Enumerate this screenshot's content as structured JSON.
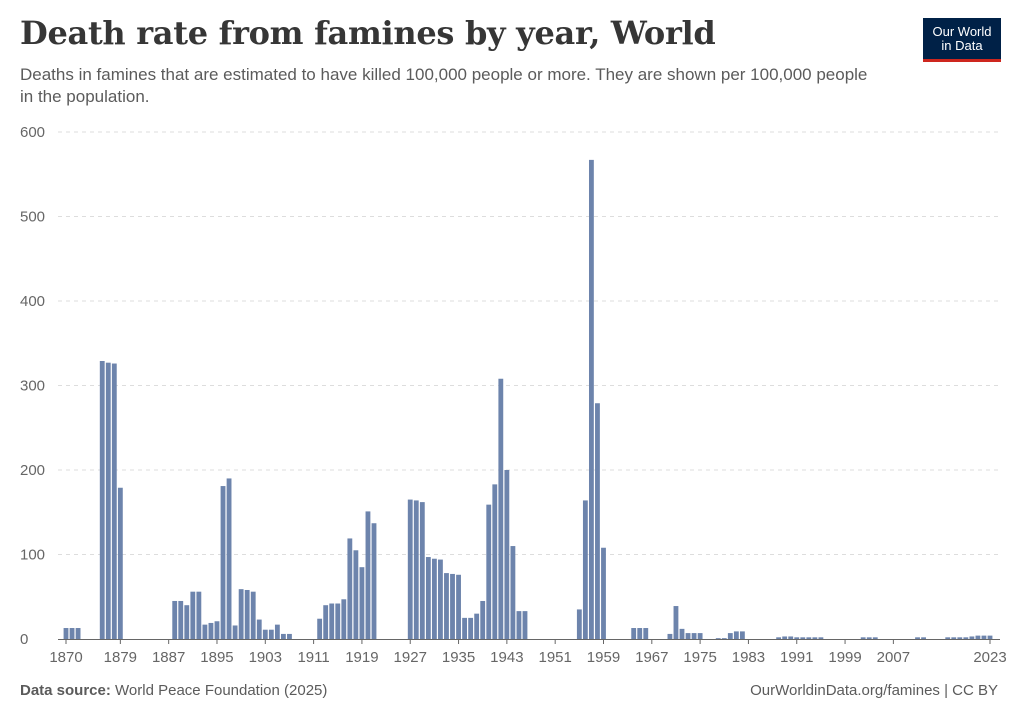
{
  "header": {
    "title": "Death rate from famines by year, World",
    "subtitle": "Deaths in famines that are estimated to have killed 100,000 people or more. They are shown per 100,000 people in the population."
  },
  "logo": {
    "line1": "Our World",
    "line2": "in Data"
  },
  "footer": {
    "source_label": "Data source:",
    "source_text": "World Peace Foundation (2025)",
    "link": "OurWorldinData.org/famines | CC BY"
  },
  "colors": {
    "bar": "#6d84ac",
    "grid": "#dddddd",
    "axis": "#666666"
  },
  "chart_data": {
    "type": "bar",
    "title": "Death rate from famines by year, World",
    "xlabel": "",
    "ylabel": "",
    "ylim": [
      0,
      600
    ],
    "yticks": [
      0,
      100,
      200,
      300,
      400,
      500,
      600
    ],
    "xticks": [
      1870,
      1879,
      1887,
      1895,
      1903,
      1911,
      1919,
      1927,
      1935,
      1943,
      1951,
      1959,
      1967,
      1975,
      1983,
      1991,
      1999,
      2007,
      2023
    ],
    "x_range": [
      1870,
      2023
    ],
    "series": [
      {
        "name": "Death rate from famines",
        "points": [
          [
            1870,
            13
          ],
          [
            1871,
            13
          ],
          [
            1872,
            13
          ],
          [
            1876,
            329
          ],
          [
            1877,
            327
          ],
          [
            1878,
            326
          ],
          [
            1879,
            179
          ],
          [
            1888,
            45
          ],
          [
            1889,
            45
          ],
          [
            1890,
            40
          ],
          [
            1891,
            56
          ],
          [
            1892,
            56
          ],
          [
            1893,
            17
          ],
          [
            1894,
            19
          ],
          [
            1895,
            21
          ],
          [
            1896,
            181
          ],
          [
            1897,
            190
          ],
          [
            1898,
            16
          ],
          [
            1899,
            59
          ],
          [
            1900,
            58
          ],
          [
            1901,
            56
          ],
          [
            1902,
            23
          ],
          [
            1903,
            11
          ],
          [
            1904,
            11
          ],
          [
            1905,
            17
          ],
          [
            1906,
            6
          ],
          [
            1907,
            6
          ],
          [
            1912,
            24
          ],
          [
            1913,
            40
          ],
          [
            1914,
            42
          ],
          [
            1915,
            42
          ],
          [
            1916,
            47
          ],
          [
            1917,
            119
          ],
          [
            1918,
            105
          ],
          [
            1919,
            85
          ],
          [
            1920,
            151
          ],
          [
            1921,
            137
          ],
          [
            1927,
            165
          ],
          [
            1928,
            164
          ],
          [
            1929,
            162
          ],
          [
            1930,
            97
          ],
          [
            1931,
            95
          ],
          [
            1932,
            94
          ],
          [
            1933,
            78
          ],
          [
            1934,
            77
          ],
          [
            1935,
            76
          ],
          [
            1936,
            25
          ],
          [
            1937,
            25
          ],
          [
            1938,
            30
          ],
          [
            1939,
            45
          ],
          [
            1940,
            159
          ],
          [
            1941,
            183
          ],
          [
            1942,
            308
          ],
          [
            1943,
            200
          ],
          [
            1944,
            110
          ],
          [
            1945,
            33
          ],
          [
            1946,
            33
          ],
          [
            1955,
            35
          ],
          [
            1956,
            164
          ],
          [
            1957,
            567
          ],
          [
            1958,
            279
          ],
          [
            1959,
            108
          ],
          [
            1964,
            13
          ],
          [
            1965,
            13
          ],
          [
            1966,
            13
          ],
          [
            1970,
            6
          ],
          [
            1971,
            39
          ],
          [
            1972,
            12
          ],
          [
            1973,
            7
          ],
          [
            1974,
            7
          ],
          [
            1975,
            7
          ],
          [
            1978,
            1
          ],
          [
            1979,
            1
          ],
          [
            1980,
            7
          ],
          [
            1981,
            9
          ],
          [
            1982,
            9
          ],
          [
            1988,
            2
          ],
          [
            1989,
            3
          ],
          [
            1990,
            3
          ],
          [
            1991,
            2
          ],
          [
            1992,
            2
          ],
          [
            1993,
            2
          ],
          [
            1994,
            2
          ],
          [
            1995,
            2
          ],
          [
            2002,
            2
          ],
          [
            2003,
            2
          ],
          [
            2004,
            2
          ],
          [
            2011,
            2
          ],
          [
            2012,
            2
          ],
          [
            2016,
            2
          ],
          [
            2017,
            2
          ],
          [
            2018,
            2
          ],
          [
            2019,
            2
          ],
          [
            2020,
            3
          ],
          [
            2021,
            4
          ],
          [
            2022,
            4
          ],
          [
            2023,
            4
          ]
        ]
      }
    ]
  }
}
